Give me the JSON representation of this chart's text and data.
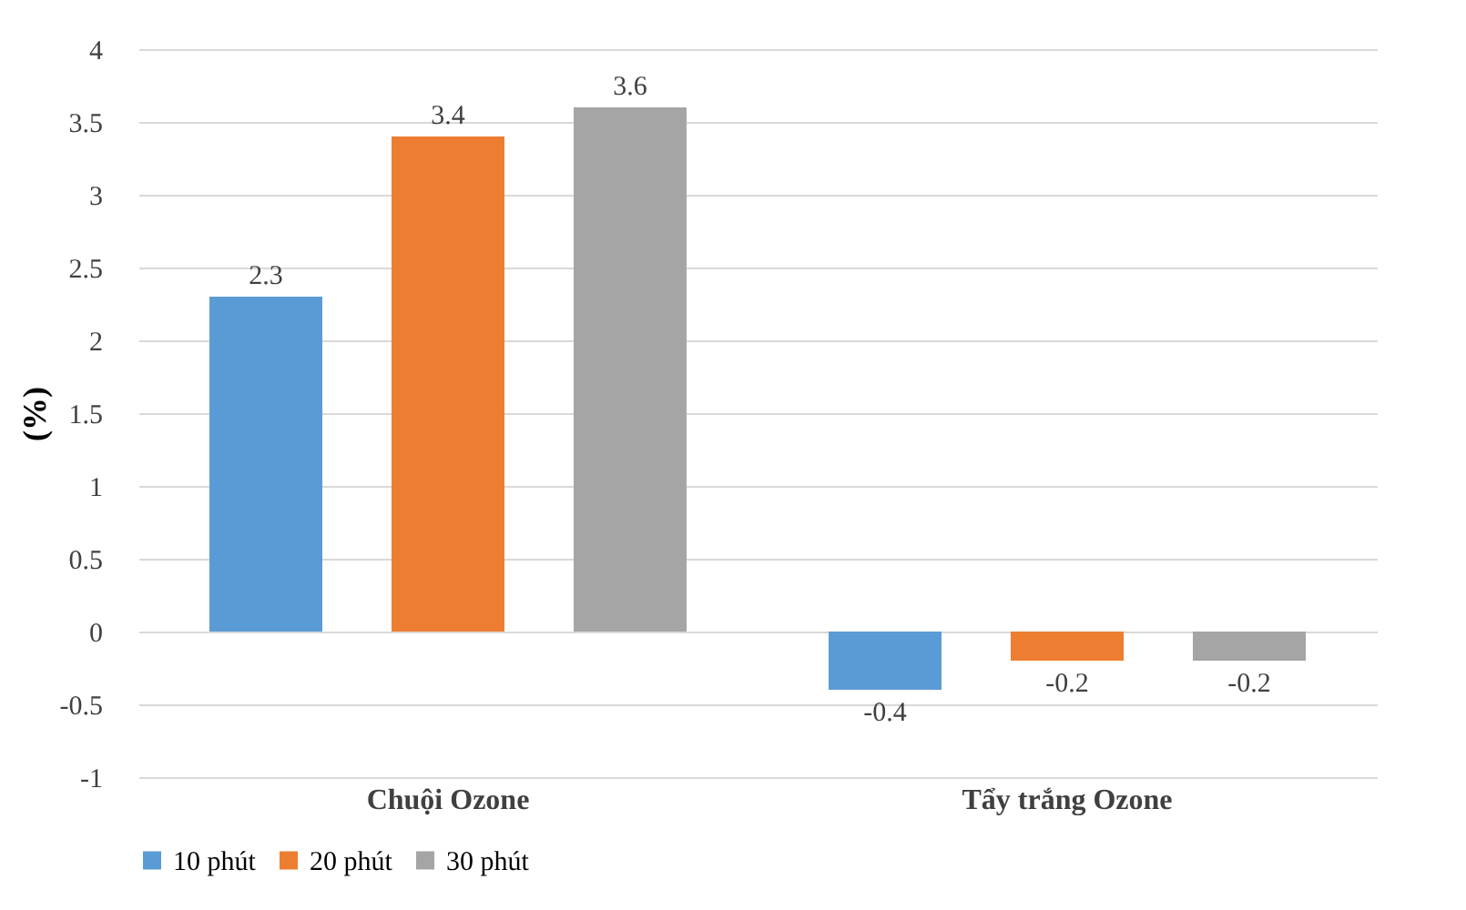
{
  "chart_data": {
    "type": "bar",
    "ylabel": "(%)",
    "categories": [
      "Chuội Ozone",
      "Tẩy trắng Ozone"
    ],
    "series": [
      {
        "name": "10 phút",
        "color": "#5b9bd5",
        "values": [
          2.3,
          -0.4
        ]
      },
      {
        "name": "20 phút",
        "color": "#ed7d31",
        "values": [
          3.4,
          -0.2
        ]
      },
      {
        "name": "30 phút",
        "color": "#a5a5a5",
        "values": [
          3.6,
          -0.2
        ]
      }
    ],
    "ylim": [
      -1,
      4
    ],
    "yticks": [
      -1,
      -0.5,
      0,
      0.5,
      1,
      1.5,
      2,
      2.5,
      3,
      3.5,
      4
    ],
    "grid": "y",
    "legend": "bottom",
    "data_labels": true
  }
}
